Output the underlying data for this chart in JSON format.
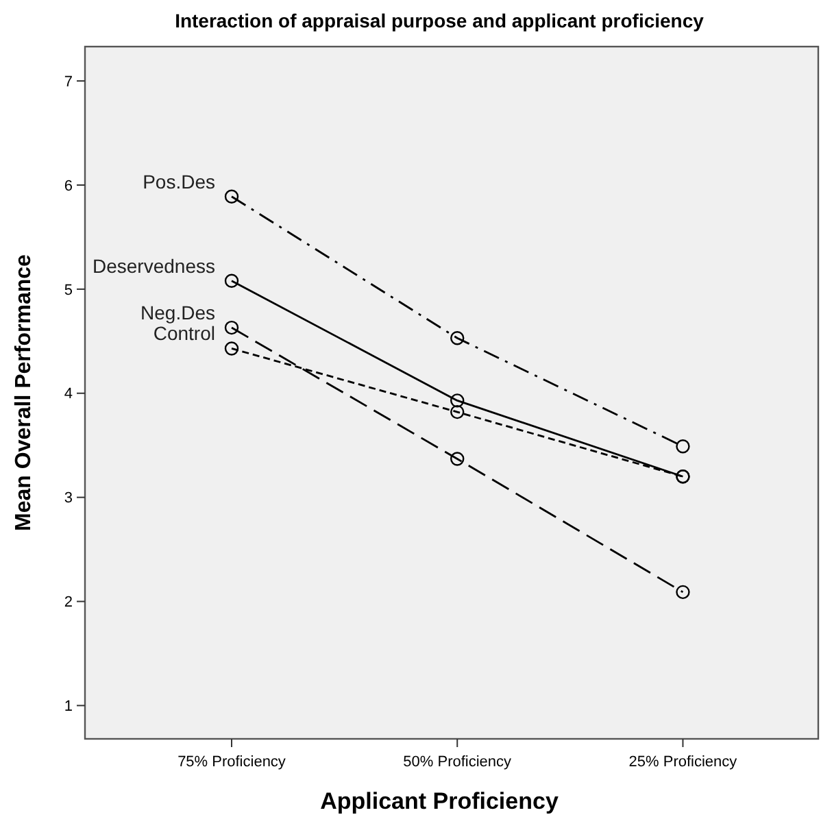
{
  "chart_data": {
    "type": "line",
    "title": "Interaction of appraisal purpose and applicant proficiency",
    "xlabel": "Applicant Proficiency",
    "ylabel": "Mean Overall Performance",
    "categories": [
      "75% Proficiency",
      "50% Proficiency",
      "25% Proficiency"
    ],
    "series": [
      {
        "name": "Pos.Des",
        "color": "#000000",
        "line_style": "dashdot",
        "values": [
          5.89,
          4.53,
          3.49
        ]
      },
      {
        "name": "Deservedness",
        "color": "#000000",
        "line_style": "solid",
        "values": [
          5.08,
          3.93,
          3.2
        ]
      },
      {
        "name": "Neg.Des",
        "color": "#000000",
        "line_style": "dashed",
        "values": [
          4.63,
          3.37,
          2.09
        ]
      },
      {
        "name": "Control",
        "color": "#000000",
        "line_style": "dotted",
        "values": [
          4.43,
          3.82,
          3.2
        ]
      }
    ],
    "ylim": [
      0.68,
      7.33
    ],
    "yticks": [
      1,
      2,
      3,
      4,
      5,
      6,
      7
    ],
    "marker": "circle",
    "grid": false,
    "legend": false
  }
}
